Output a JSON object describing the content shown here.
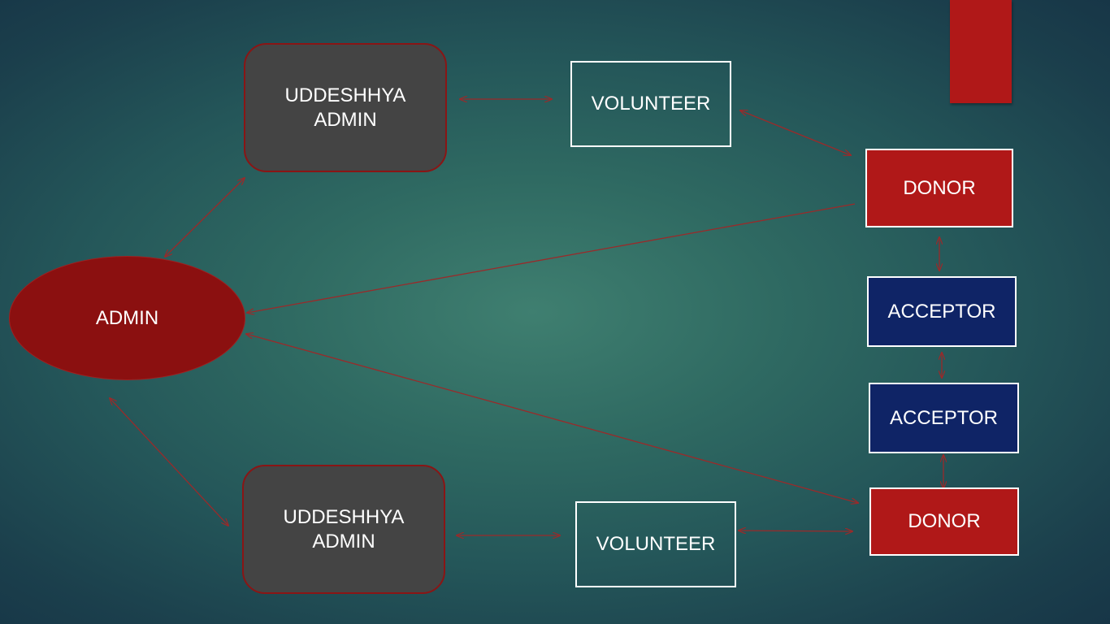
{
  "nodes": {
    "admin": "ADMIN",
    "uddeshhya_admin_top": [
      "UDDESHHYA",
      "ADMIN"
    ],
    "uddeshhya_admin_bottom": [
      "UDDESHHYA",
      "ADMIN"
    ],
    "volunteer_top": "VOLUNTEER",
    "volunteer_bottom": "VOLUNTEER",
    "donor_top": "DONOR",
    "donor_bottom": "DONOR",
    "acceptor_top": "ACCEPTOR",
    "acceptor_bottom": "ACCEPTOR"
  },
  "edges": [
    {
      "from": "admin",
      "to": "uddeshhya_admin_top",
      "direction": "both"
    },
    {
      "from": "admin",
      "to": "uddeshhya_admin_bottom",
      "direction": "both"
    },
    {
      "from": "uddeshhya_admin_top",
      "to": "volunteer_top",
      "direction": "both"
    },
    {
      "from": "uddeshhya_admin_bottom",
      "to": "volunteer_bottom",
      "direction": "both"
    },
    {
      "from": "volunteer_top",
      "to": "donor_top",
      "direction": "both"
    },
    {
      "from": "volunteer_bottom",
      "to": "donor_bottom",
      "direction": "both"
    },
    {
      "from": "donor_top",
      "to": "admin",
      "direction": "to"
    },
    {
      "from": "admin",
      "to": "donor_bottom",
      "direction": "both"
    },
    {
      "from": "donor_top",
      "to": "acceptor_top",
      "direction": "both"
    },
    {
      "from": "acceptor_top",
      "to": "acceptor_bottom",
      "direction": "both"
    },
    {
      "from": "acceptor_bottom",
      "to": "donor_bottom",
      "direction": "both"
    }
  ],
  "colors": {
    "connector": "#9a2a2a",
    "admin_fill": "#8b1010",
    "uddeshhya_fill": "#444444",
    "donor_fill": "#b01818",
    "acceptor_fill": "#0f2466",
    "text": "#ffffff"
  }
}
